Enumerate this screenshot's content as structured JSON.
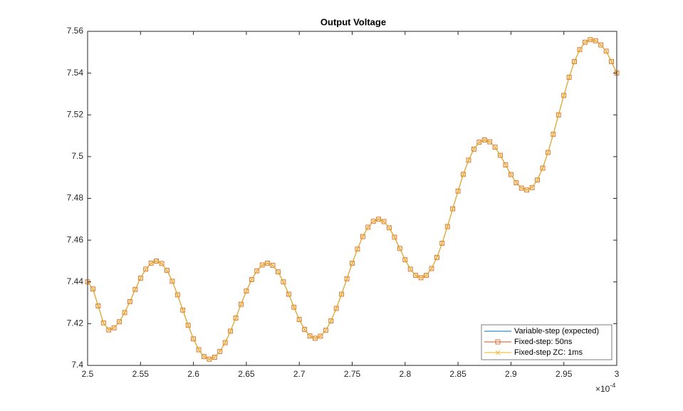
{
  "chart_data": {
    "type": "line",
    "title": "Output Voltage",
    "x": [
      2.5,
      2.505,
      2.51,
      2.515,
      2.52,
      2.525,
      2.53,
      2.535,
      2.54,
      2.545,
      2.55,
      2.555,
      2.56,
      2.565,
      2.57,
      2.575,
      2.58,
      2.585,
      2.59,
      2.595,
      2.6,
      2.605,
      2.61,
      2.615,
      2.62,
      2.625,
      2.63,
      2.635,
      2.64,
      2.645,
      2.65,
      2.655,
      2.66,
      2.665,
      2.67,
      2.675,
      2.68,
      2.685,
      2.69,
      2.695,
      2.7,
      2.705,
      2.71,
      2.715,
      2.72,
      2.725,
      2.73,
      2.735,
      2.74,
      2.745,
      2.75,
      2.755,
      2.76,
      2.765,
      2.77,
      2.775,
      2.78,
      2.785,
      2.79,
      2.795,
      2.8,
      2.805,
      2.81,
      2.815,
      2.82,
      2.825,
      2.83,
      2.835,
      2.84,
      2.845,
      2.85,
      2.855,
      2.86,
      2.865,
      2.87,
      2.875,
      2.88,
      2.885,
      2.89,
      2.895,
      2.9,
      2.905,
      2.91,
      2.915,
      2.92,
      2.925,
      2.93,
      2.935,
      2.94,
      2.945,
      2.95,
      2.955,
      2.96,
      2.965,
      2.97,
      2.975,
      2.98,
      2.985,
      2.99,
      2.995,
      3.0
    ],
    "series": [
      {
        "name": "Variable-step (expected)",
        "color": "#0072BD",
        "marker": "none",
        "values": [
          7.44,
          7.4366,
          7.4285,
          7.4204,
          7.417,
          7.418,
          7.4209,
          7.4253,
          7.4306,
          7.4364,
          7.4418,
          7.4461,
          7.449,
          7.45,
          7.4488,
          7.4455,
          7.4403,
          7.4338,
          7.4265,
          7.4192,
          7.4127,
          7.4075,
          7.4042,
          7.403,
          7.4039,
          7.4067,
          7.4109,
          7.4164,
          7.4227,
          7.4293,
          7.4356,
          7.4411,
          7.4453,
          7.4481,
          7.449,
          7.4479,
          7.4448,
          7.44,
          7.4341,
          7.4279,
          7.422,
          7.4172,
          7.4141,
          7.413,
          7.414,
          7.4168,
          7.4213,
          7.4273,
          7.4341,
          7.4415,
          7.4489,
          7.4557,
          7.4617,
          7.4662,
          7.469,
          7.47,
          7.4689,
          7.4659,
          7.4614,
          7.456,
          7.4506,
          7.4461,
          7.4431,
          7.442,
          7.4431,
          7.4464,
          7.4517,
          7.4585,
          7.4665,
          7.475,
          7.4835,
          7.4915,
          7.4983,
          7.5036,
          7.5069,
          7.508,
          7.5071,
          7.5045,
          7.5006,
          7.496,
          7.4914,
          7.4875,
          7.4849,
          7.484,
          7.4852,
          7.4888,
          7.4945,
          7.502,
          7.5107,
          7.52,
          7.5293,
          7.538,
          7.5455,
          7.5512,
          7.5548,
          7.556,
          7.5555,
          7.5535,
          7.5505,
          7.5455,
          7.54
        ]
      },
      {
        "name": "Fixed-step: 50ns",
        "color": "#D95319",
        "marker": "square",
        "values": [
          7.44,
          7.4366,
          7.4285,
          7.4204,
          7.417,
          7.418,
          7.4209,
          7.4253,
          7.4306,
          7.4364,
          7.4418,
          7.4461,
          7.449,
          7.45,
          7.4488,
          7.4455,
          7.4403,
          7.4338,
          7.4265,
          7.4192,
          7.4127,
          7.4075,
          7.4042,
          7.403,
          7.4039,
          7.4067,
          7.4109,
          7.4164,
          7.4227,
          7.4293,
          7.4356,
          7.4411,
          7.4453,
          7.4481,
          7.449,
          7.4479,
          7.4448,
          7.44,
          7.4341,
          7.4279,
          7.422,
          7.4172,
          7.4141,
          7.413,
          7.414,
          7.4168,
          7.4213,
          7.4273,
          7.4341,
          7.4415,
          7.4489,
          7.4557,
          7.4617,
          7.4662,
          7.469,
          7.47,
          7.4689,
          7.4659,
          7.4614,
          7.456,
          7.4506,
          7.4461,
          7.4431,
          7.442,
          7.4431,
          7.4464,
          7.4517,
          7.4585,
          7.4665,
          7.475,
          7.4835,
          7.4915,
          7.4983,
          7.5036,
          7.5069,
          7.508,
          7.5071,
          7.5045,
          7.5006,
          7.496,
          7.4914,
          7.4875,
          7.4849,
          7.484,
          7.4852,
          7.4888,
          7.4945,
          7.502,
          7.5107,
          7.52,
          7.5293,
          7.538,
          7.5455,
          7.5512,
          7.5548,
          7.556,
          7.5555,
          7.5535,
          7.5505,
          7.5455,
          7.54
        ]
      },
      {
        "name": "Fixed-step ZC: 1ms",
        "color": "#EDB120",
        "marker": "x",
        "values": [
          7.44,
          7.4366,
          7.4285,
          7.4204,
          7.417,
          7.418,
          7.4209,
          7.4253,
          7.4306,
          7.4364,
          7.4418,
          7.4461,
          7.449,
          7.45,
          7.4488,
          7.4455,
          7.4403,
          7.4338,
          7.4265,
          7.4192,
          7.4127,
          7.4075,
          7.4042,
          7.403,
          7.4039,
          7.4067,
          7.4109,
          7.4164,
          7.4227,
          7.4293,
          7.4356,
          7.4411,
          7.4453,
          7.4481,
          7.449,
          7.4479,
          7.4448,
          7.44,
          7.4341,
          7.4279,
          7.422,
          7.4172,
          7.4141,
          7.413,
          7.414,
          7.4168,
          7.4213,
          7.4273,
          7.4341,
          7.4415,
          7.4489,
          7.4557,
          7.4617,
          7.4662,
          7.469,
          7.47,
          7.4689,
          7.4659,
          7.4614,
          7.456,
          7.4506,
          7.4461,
          7.4431,
          7.442,
          7.4431,
          7.4464,
          7.4517,
          7.4585,
          7.4665,
          7.475,
          7.4835,
          7.4915,
          7.4983,
          7.5036,
          7.5069,
          7.508,
          7.5071,
          7.5045,
          7.5006,
          7.496,
          7.4914,
          7.4875,
          7.4849,
          7.484,
          7.4852,
          7.4888,
          7.4945,
          7.502,
          7.5107,
          7.52,
          7.5293,
          7.538,
          7.5455,
          7.5512,
          7.5548,
          7.556,
          7.5555,
          7.5535,
          7.5505,
          7.5455,
          7.54
        ]
      }
    ],
    "xlim": [
      2.5,
      3
    ],
    "xticks": [
      2.5,
      2.55,
      2.6,
      2.65,
      2.7,
      2.75,
      2.8,
      2.85,
      2.9,
      2.95,
      3
    ],
    "x_exponent_base": "×10",
    "x_exponent": "-4",
    "ylim": [
      7.4,
      7.56
    ],
    "yticks": [
      7.4,
      7.42,
      7.44,
      7.46,
      7.48,
      7.5,
      7.52,
      7.54,
      7.56
    ],
    "grid": false,
    "legend": "southeast"
  }
}
